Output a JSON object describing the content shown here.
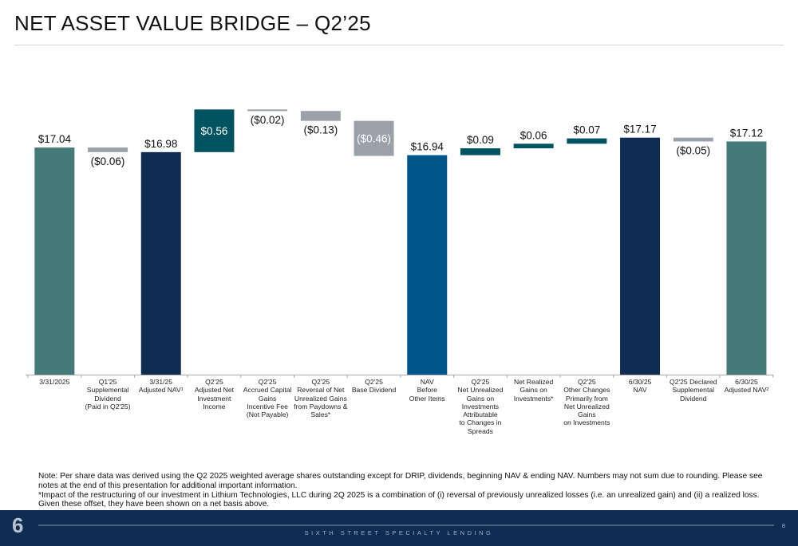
{
  "title": "NET ASSET VALUE BRIDGE – Q2’25",
  "chart_data": {
    "type": "waterfall",
    "categories": [
      "3/31/2025",
      "Q1'25\nSupplemental\nDividend\n(Paid in Q2'25)",
      "3/31/25\nAdjusted NAV¹",
      "Q2'25\nAdjusted Net\nInvestment\nIncome",
      "Q2'25\nAccrued Capital\nGains\nIncentive Fee\n(Not Payable)",
      "Q2'25\nReversal of Net\nUnrealized Gains\nfrom Paydowns &\nSales*",
      "Q2'25\nBase Dividend",
      "NAV\nBefore\nOther Items",
      "Q2'25\nNet Unrealized\nGains on\nInvestments\nAttributable\nto Changes in\nSpreads",
      "Net Realized\nGains on\nInvestments*",
      "Q2'25\nOther Changes\nPrimarily from\nNet Unrealized\nGains\non Investments",
      "6/30/25\nNAV",
      "Q2'25 Declared\nSupplemental\nDividend",
      "6/30/25\nAdjusted NAV²"
    ],
    "kinds": [
      "total",
      "delta",
      "total",
      "delta",
      "delta",
      "delta",
      "delta",
      "total",
      "delta",
      "delta",
      "delta",
      "total",
      "delta",
      "total"
    ],
    "values": [
      17.04,
      -0.06,
      16.98,
      0.56,
      -0.02,
      -0.13,
      -0.46,
      16.94,
      0.09,
      0.06,
      0.07,
      17.17,
      -0.05,
      17.12
    ],
    "labels": [
      "$17.04",
      "($0.06)",
      "$16.98",
      "$0.56",
      "($0.02)",
      "($0.13)",
      "($0.46)",
      "$16.94",
      "$0.09",
      "$0.06",
      "$0.07",
      "$17.17",
      "($0.05)",
      "$17.12"
    ],
    "colors": [
      "#447a78",
      "#9ba1a9",
      "#0f2d52",
      "#005360",
      "#9ba1a9",
      "#9ba1a9",
      "#9ba1a9",
      "#00568a",
      "#005360",
      "#005360",
      "#005360",
      "#0f2d52",
      "#9ba1a9",
      "#447a78"
    ]
  },
  "notes": [
    "Note: Per share data was derived using the Q2 2025 weighted average shares outstanding except for DRIP, dividends, beginning NAV & ending NAV. Numbers may not sum due to rounding. Please see notes at the end of this presentation for additional important information.",
    "*Impact of the restructuring of our investment in Lithium Technologies, LLC during 2Q 2025 is a combination of (i) reversal of previously unrealized losses (i.e. an unrealized gain) and (ii) a realized loss. Given these offset, they have been shown on a net basis above."
  ],
  "footer": {
    "logo": "6",
    "company": "SIXTH STREET SPECIALTY LENDING",
    "page": "8"
  }
}
